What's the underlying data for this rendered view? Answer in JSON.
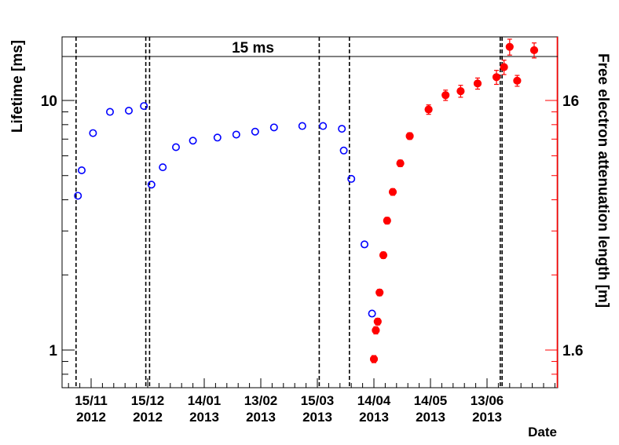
{
  "chart_data": {
    "type": "scatter",
    "xlabel": "Date",
    "ylabel": "Lifetime [ms]",
    "y2label": "Free electron attenuation length [m]",
    "yscale": "log",
    "ylim": [
      0.77,
      17.5
    ],
    "y2ticks": [
      "16",
      "1.6"
    ],
    "x_ticks": [
      {
        "day": "15/11",
        "year": "2012"
      },
      {
        "day": "15/12",
        "year": "2012"
      },
      {
        "day": "14/01",
        "year": "2013"
      },
      {
        "day": "13/02",
        "year": "2013"
      },
      {
        "day": "15/03",
        "year": "2013"
      },
      {
        "day": "14/04",
        "year": "2013"
      },
      {
        "day": "14/05",
        "year": "2013"
      },
      {
        "day": "13/06",
        "year": "2013"
      }
    ],
    "y_ticks": [
      "10",
      "1"
    ],
    "reference_line": {
      "label": "15 ms",
      "value": 15
    },
    "vertical_lines": [
      "2012-11-07",
      "2012-12-14",
      "2012-12-16",
      "2013-03-16",
      "2013-04-01",
      "2013-06-20",
      "2013-06-21"
    ],
    "series": [
      {
        "color": "#0000ff",
        "marker": "open-circle",
        "points": [
          {
            "date": "2012-11-08",
            "y": 4.15
          },
          {
            "date": "2012-11-10",
            "y": 5.25
          },
          {
            "date": "2012-11-16",
            "y": 7.4
          },
          {
            "date": "2012-11-25",
            "y": 9.0
          },
          {
            "date": "2012-12-05",
            "y": 9.1
          },
          {
            "date": "2012-12-13",
            "y": 9.5
          },
          {
            "date": "2012-12-17",
            "y": 4.6
          },
          {
            "date": "2012-12-23",
            "y": 5.4
          },
          {
            "date": "2012-12-30",
            "y": 6.5
          },
          {
            "date": "2013-01-08",
            "y": 6.9
          },
          {
            "date": "2013-01-21",
            "y": 7.1
          },
          {
            "date": "2013-01-31",
            "y": 7.3
          },
          {
            "date": "2013-02-10",
            "y": 7.5
          },
          {
            "date": "2013-02-20",
            "y": 7.8
          },
          {
            "date": "2013-03-07",
            "y": 7.9
          },
          {
            "date": "2013-03-18",
            "y": 7.9
          },
          {
            "date": "2013-03-28",
            "y": 7.7
          },
          {
            "date": "2013-03-29",
            "y": 6.3
          },
          {
            "date": "2013-04-02",
            "y": 4.85
          },
          {
            "date": "2013-04-09",
            "y": 2.65
          },
          {
            "date": "2013-04-13",
            "y": 1.4
          }
        ]
      },
      {
        "color": "#ff0000",
        "marker": "filled-circle",
        "points": [
          {
            "date": "2013-04-14",
            "y": 0.92,
            "err": 0.03
          },
          {
            "date": "2013-04-15",
            "y": 1.2,
            "err": 0.04
          },
          {
            "date": "2013-04-16",
            "y": 1.3,
            "err": 0.04
          },
          {
            "date": "2013-04-17",
            "y": 1.7,
            "err": 0.05
          },
          {
            "date": "2013-04-19",
            "y": 2.4,
            "err": 0.07
          },
          {
            "date": "2013-04-21",
            "y": 3.3,
            "err": 0.1
          },
          {
            "date": "2013-04-24",
            "y": 4.3,
            "err": 0.13
          },
          {
            "date": "2013-04-28",
            "y": 5.6,
            "err": 0.17
          },
          {
            "date": "2013-05-03",
            "y": 7.2,
            "err": 0.22
          },
          {
            "date": "2013-05-13",
            "y": 9.2,
            "err": 0.4
          },
          {
            "date": "2013-05-22",
            "y": 10.5,
            "err": 0.5
          },
          {
            "date": "2013-05-30",
            "y": 10.9,
            "err": 0.6
          },
          {
            "date": "2013-06-08",
            "y": 11.7,
            "err": 0.6
          },
          {
            "date": "2013-06-18",
            "y": 12.4,
            "err": 0.8
          },
          {
            "date": "2013-06-22",
            "y": 13.6,
            "err": 0.9
          },
          {
            "date": "2013-06-25",
            "y": 16.4,
            "err": 1.2
          },
          {
            "date": "2013-06-29",
            "y": 12.0,
            "err": 0.6
          },
          {
            "date": "2013-07-08",
            "y": 15.9,
            "err": 1.1
          }
        ]
      }
    ]
  }
}
